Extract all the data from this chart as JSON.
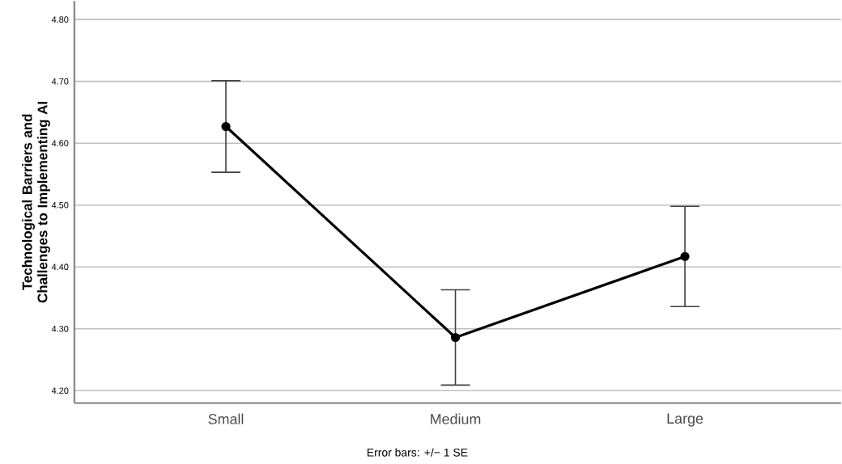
{
  "chart_data": {
    "type": "line",
    "ylabel": "Technological Barriers and Challenges to Implementing AI",
    "categories": [
      "Small",
      "Medium",
      "Large"
    ],
    "series": [
      {
        "color": "#000000",
        "values": [
          4.627,
          4.286,
          4.417
        ],
        "errors": [
          0.074,
          0.077,
          0.081
        ]
      }
    ],
    "ylim": [
      4.18,
      4.83
    ],
    "yticks": [
      {
        "value": 4.2,
        "label": "4.20"
      },
      {
        "value": 4.3,
        "label": "4.30"
      },
      {
        "value": 4.4,
        "label": "4.40"
      },
      {
        "value": 4.5,
        "label": "4.50"
      },
      {
        "value": 4.6,
        "label": "4.60"
      },
      {
        "value": 4.7,
        "label": "4.70"
      },
      {
        "value": 4.8,
        "label": "4.80"
      }
    ],
    "grid": "y",
    "marker": "circle",
    "line_style": "solid",
    "annotations": [
      "Error bars: +/− 1 SE"
    ]
  }
}
